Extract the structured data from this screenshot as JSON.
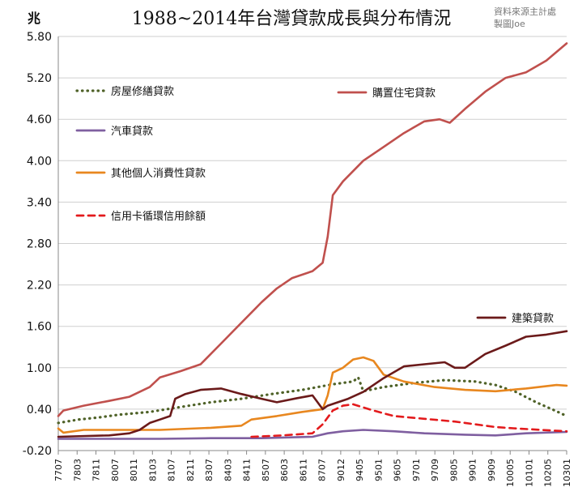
{
  "chart_data": {
    "type": "line",
    "title": "1988~2014年台灣貸款成長與分布情況",
    "unit": "兆",
    "source_line1": "資料來源主計處",
    "source_line2": "製圖Joe",
    "xlabel": "",
    "ylabel": "兆",
    "ylim": [
      -0.2,
      5.8
    ],
    "yticks": [
      "5.80",
      "5.20",
      "4.60",
      "4.00",
      "3.40",
      "2.80",
      "2.20",
      "1.60",
      "1.00",
      "0.40",
      "-0.20"
    ],
    "ytick_values": [
      5.8,
      5.2,
      4.6,
      4.0,
      3.4,
      2.8,
      2.2,
      1.6,
      1.0,
      0.4,
      -0.2
    ],
    "xticks": [
      "7707",
      "7803",
      "7811",
      "8007",
      "8011",
      "8103",
      "8107",
      "8211",
      "8307",
      "8403",
      "8411",
      "8507",
      "8603",
      "8611",
      "8707",
      "9012",
      "9405",
      "9501",
      "9605",
      "9701",
      "9709",
      "9805",
      "9901",
      "9909",
      "10005",
      "10101",
      "10205",
      "10301"
    ],
    "grid": true,
    "legend": "inside",
    "colors": {
      "home_repair": "#4f6228",
      "home_purchase": "#c0504d",
      "auto": "#7f5fa0",
      "other_consumer": "#e8871f",
      "credit_card": "#e31a1c",
      "construction": "#6b1a1a",
      "grid": "#cfcfcf",
      "axis": "#888888"
    },
    "series": [
      {
        "key": "home_repair",
        "name": "房屋修繕貸款",
        "style": "dotted",
        "points": [
          [
            0,
            0.2
          ],
          [
            0.04,
            0.25
          ],
          [
            0.08,
            0.28
          ],
          [
            0.12,
            0.32
          ],
          [
            0.18,
            0.36
          ],
          [
            0.24,
            0.43
          ],
          [
            0.3,
            0.5
          ],
          [
            0.36,
            0.55
          ],
          [
            0.42,
            0.62
          ],
          [
            0.48,
            0.68
          ],
          [
            0.54,
            0.76
          ],
          [
            0.58,
            0.8
          ],
          [
            0.59,
            0.86
          ],
          [
            0.6,
            0.66
          ],
          [
            0.64,
            0.72
          ],
          [
            0.7,
            0.78
          ],
          [
            0.76,
            0.82
          ],
          [
            0.82,
            0.8
          ],
          [
            0.86,
            0.75
          ],
          [
            0.9,
            0.65
          ],
          [
            0.94,
            0.5
          ],
          [
            0.98,
            0.37
          ],
          [
            1.0,
            0.3
          ]
        ]
      },
      {
        "key": "home_purchase",
        "name": "購置住宅貸款",
        "style": "solid",
        "points": [
          [
            0,
            0.3
          ],
          [
            0.01,
            0.38
          ],
          [
            0.05,
            0.45
          ],
          [
            0.1,
            0.52
          ],
          [
            0.14,
            0.58
          ],
          [
            0.18,
            0.72
          ],
          [
            0.2,
            0.86
          ],
          [
            0.24,
            0.95
          ],
          [
            0.28,
            1.05
          ],
          [
            0.32,
            1.35
          ],
          [
            0.36,
            1.65
          ],
          [
            0.4,
            1.95
          ],
          [
            0.43,
            2.15
          ],
          [
            0.46,
            2.3
          ],
          [
            0.5,
            2.4
          ],
          [
            0.52,
            2.52
          ],
          [
            0.53,
            2.9
          ],
          [
            0.54,
            3.5
          ],
          [
            0.56,
            3.7
          ],
          [
            0.6,
            4.0
          ],
          [
            0.64,
            4.2
          ],
          [
            0.68,
            4.4
          ],
          [
            0.72,
            4.57
          ],
          [
            0.75,
            4.6
          ],
          [
            0.77,
            4.55
          ],
          [
            0.8,
            4.75
          ],
          [
            0.84,
            5.0
          ],
          [
            0.88,
            5.2
          ],
          [
            0.92,
            5.28
          ],
          [
            0.96,
            5.45
          ],
          [
            1.0,
            5.7
          ]
        ]
      },
      {
        "key": "auto",
        "name": "汽車貸款",
        "style": "solid",
        "points": [
          [
            0,
            -0.03
          ],
          [
            0.1,
            -0.03
          ],
          [
            0.2,
            -0.03
          ],
          [
            0.3,
            -0.02
          ],
          [
            0.4,
            -0.02
          ],
          [
            0.5,
            0.0
          ],
          [
            0.53,
            0.05
          ],
          [
            0.56,
            0.08
          ],
          [
            0.6,
            0.1
          ],
          [
            0.66,
            0.08
          ],
          [
            0.72,
            0.05
          ],
          [
            0.8,
            0.03
          ],
          [
            0.86,
            0.02
          ],
          [
            0.92,
            0.05
          ],
          [
            1.0,
            0.07
          ]
        ]
      },
      {
        "key": "other_consumer",
        "name": "其他個人消費性貸款",
        "style": "solid",
        "points": [
          [
            0,
            0.12
          ],
          [
            0.01,
            0.06
          ],
          [
            0.05,
            0.1
          ],
          [
            0.12,
            0.1
          ],
          [
            0.2,
            0.1
          ],
          [
            0.3,
            0.13
          ],
          [
            0.36,
            0.16
          ],
          [
            0.38,
            0.25
          ],
          [
            0.43,
            0.3
          ],
          [
            0.48,
            0.36
          ],
          [
            0.52,
            0.4
          ],
          [
            0.53,
            0.6
          ],
          [
            0.54,
            0.93
          ],
          [
            0.56,
            1.0
          ],
          [
            0.58,
            1.12
          ],
          [
            0.6,
            1.15
          ],
          [
            0.62,
            1.1
          ],
          [
            0.64,
            0.9
          ],
          [
            0.68,
            0.8
          ],
          [
            0.74,
            0.72
          ],
          [
            0.8,
            0.68
          ],
          [
            0.86,
            0.66
          ],
          [
            0.92,
            0.7
          ],
          [
            0.98,
            0.75
          ],
          [
            1.0,
            0.74
          ]
        ]
      },
      {
        "key": "credit_card",
        "name": "信用卡循環信用餘額",
        "style": "dashed",
        "points": [
          [
            0.38,
            0.0
          ],
          [
            0.44,
            0.02
          ],
          [
            0.5,
            0.05
          ],
          [
            0.52,
            0.18
          ],
          [
            0.54,
            0.38
          ],
          [
            0.56,
            0.45
          ],
          [
            0.58,
            0.47
          ],
          [
            0.62,
            0.38
          ],
          [
            0.66,
            0.3
          ],
          [
            0.72,
            0.26
          ],
          [
            0.78,
            0.22
          ],
          [
            0.82,
            0.18
          ],
          [
            0.86,
            0.14
          ],
          [
            0.9,
            0.12
          ],
          [
            0.95,
            0.1
          ],
          [
            1.0,
            0.08
          ]
        ]
      },
      {
        "key": "construction",
        "name": "建築貸款",
        "style": "solid",
        "points": [
          [
            0,
            0.0
          ],
          [
            0.1,
            0.02
          ],
          [
            0.14,
            0.05
          ],
          [
            0.16,
            0.1
          ],
          [
            0.18,
            0.2
          ],
          [
            0.2,
            0.25
          ],
          [
            0.22,
            0.3
          ],
          [
            0.23,
            0.55
          ],
          [
            0.25,
            0.62
          ],
          [
            0.28,
            0.68
          ],
          [
            0.32,
            0.7
          ],
          [
            0.36,
            0.62
          ],
          [
            0.4,
            0.55
          ],
          [
            0.43,
            0.5
          ],
          [
            0.47,
            0.56
          ],
          [
            0.5,
            0.6
          ],
          [
            0.52,
            0.4
          ],
          [
            0.53,
            0.45
          ],
          [
            0.57,
            0.55
          ],
          [
            0.6,
            0.65
          ],
          [
            0.64,
            0.85
          ],
          [
            0.68,
            1.02
          ],
          [
            0.72,
            1.05
          ],
          [
            0.76,
            1.08
          ],
          [
            0.78,
            1.0
          ],
          [
            0.8,
            1.0
          ],
          [
            0.84,
            1.2
          ],
          [
            0.88,
            1.32
          ],
          [
            0.92,
            1.45
          ],
          [
            0.96,
            1.48
          ],
          [
            1.0,
            1.53
          ]
        ]
      }
    ]
  }
}
